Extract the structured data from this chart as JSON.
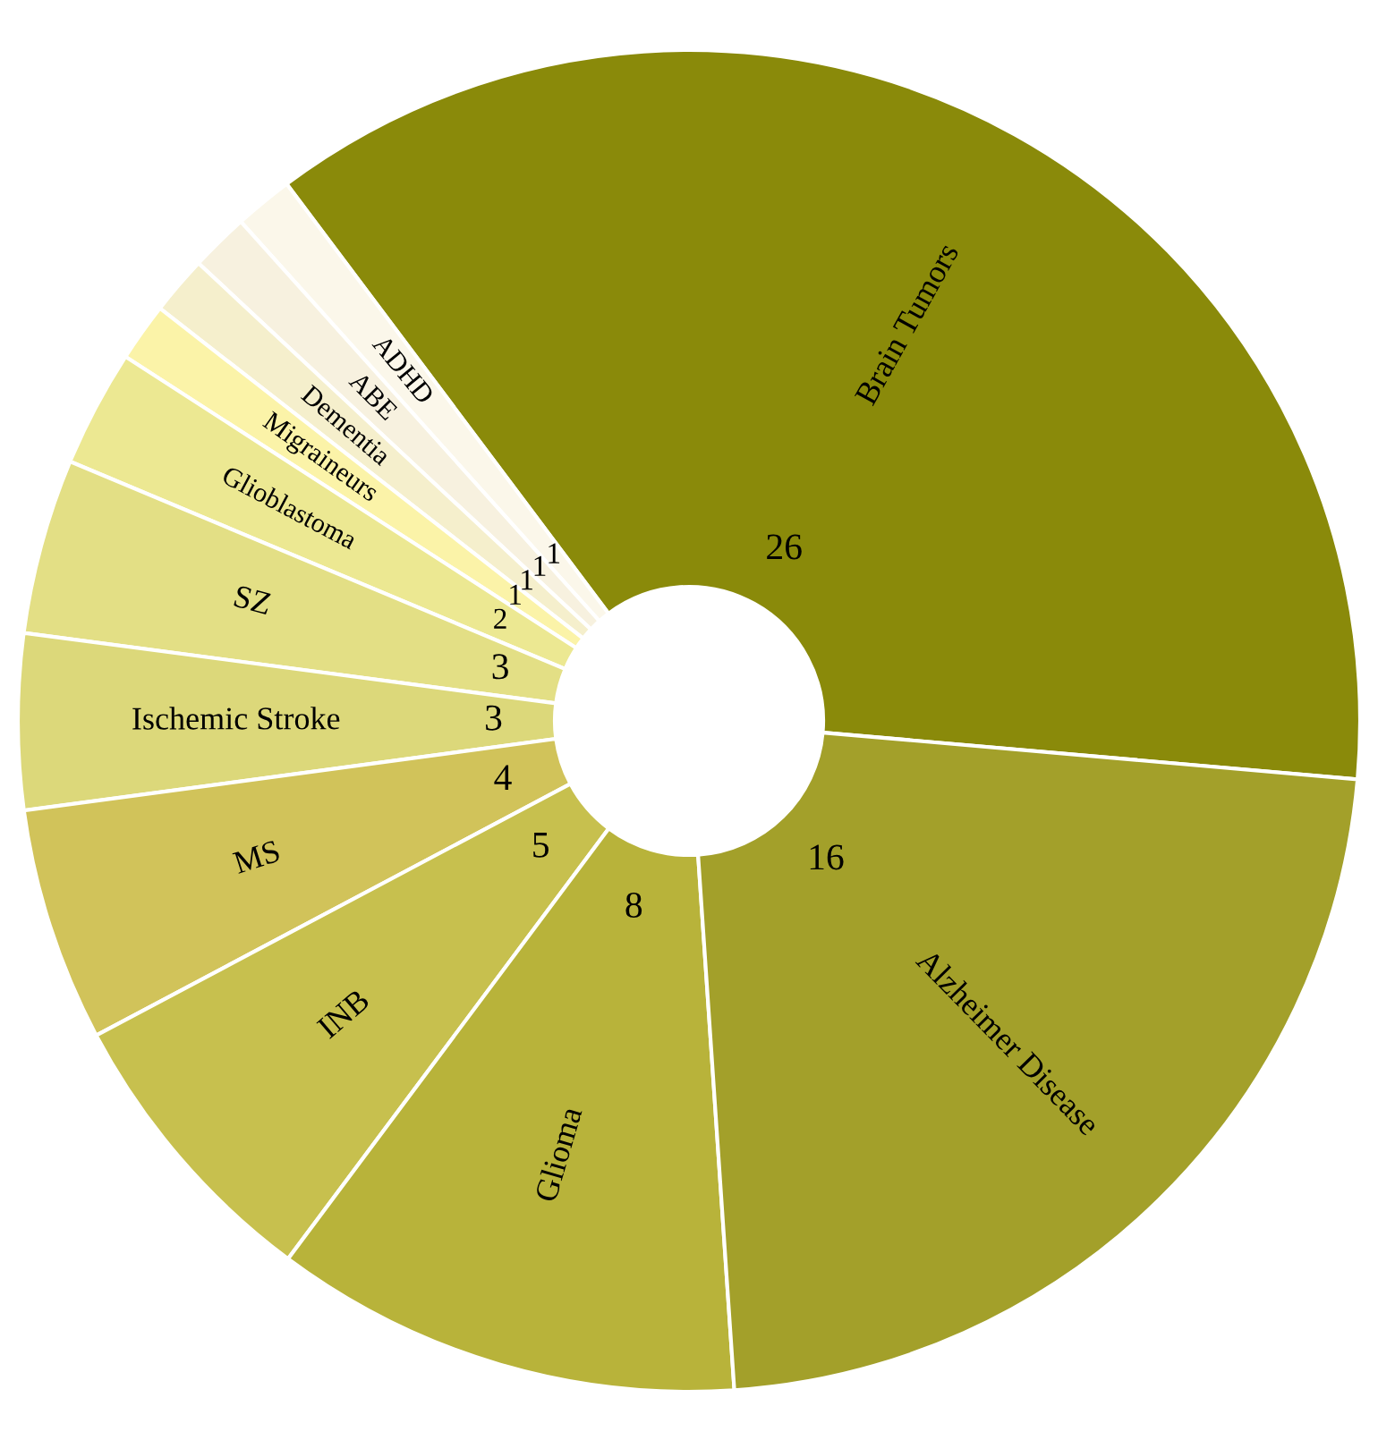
{
  "chart_data": {
    "type": "donut",
    "categories": [
      "Brain Tumors",
      "ADHD",
      "ABE",
      "Dementia",
      "Migraineurs",
      "Glioblastoma",
      "SZ",
      "Ischemic Stroke",
      "MS",
      "INB",
      "Glioma",
      "Alzheimer Disease"
    ],
    "values": [
      26,
      1,
      1,
      1,
      1,
      2,
      3,
      3,
      4,
      5,
      8,
      16
    ],
    "colors": [
      "#8a8a0a",
      "#fbf7ea",
      "#f7f1df",
      "#f5efcc",
      "#fbf3a8",
      "#ece892",
      "#e3df85",
      "#dcd87a",
      "#d1c35a",
      "#c7c04e",
      "#b8b33a",
      "#a3a02a"
    ],
    "data_labels": true
  }
}
